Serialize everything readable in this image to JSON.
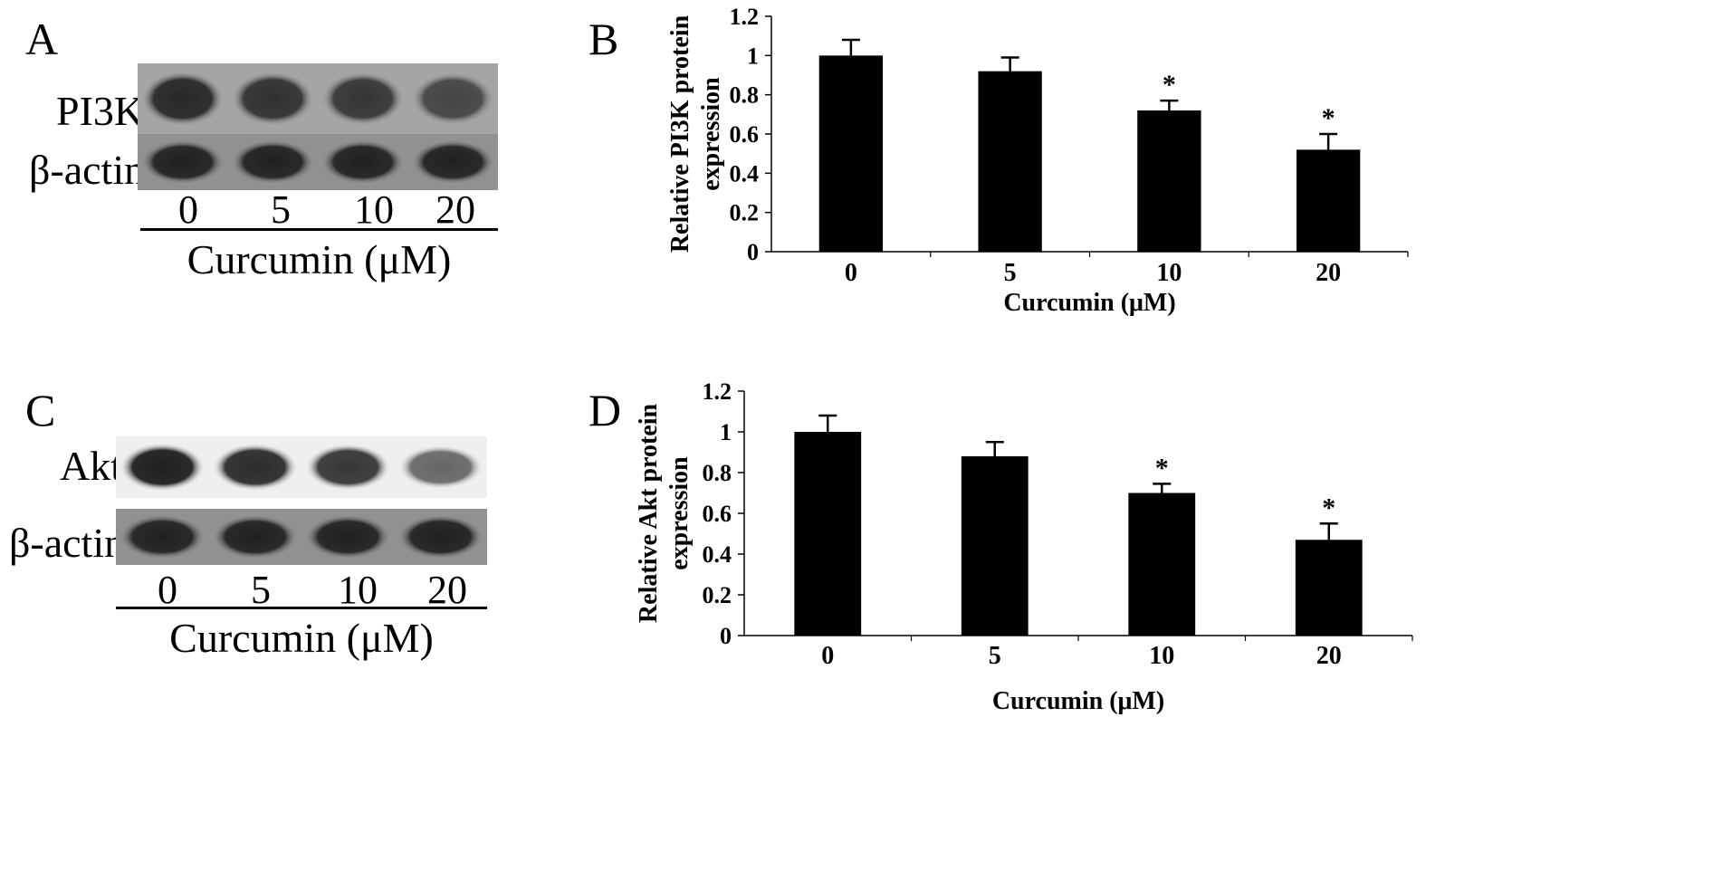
{
  "panels": {
    "a": {
      "letter": "A",
      "bands": [
        {
          "label": "PI3K",
          "intensities": [
            0.92,
            0.88,
            0.86,
            0.8
          ],
          "background": 0.45
        },
        {
          "label": "β-actin",
          "intensities": [
            0.95,
            0.95,
            0.95,
            0.95
          ],
          "background": 0.55
        }
      ],
      "lanes": [
        "0",
        "5",
        "10",
        "20"
      ],
      "xlabel": "Curcumin (μM)"
    },
    "b": {
      "letter": "B"
    },
    "c": {
      "letter": "C",
      "bands": [
        {
          "label": "Akt",
          "intensities": [
            0.95,
            0.9,
            0.85,
            0.65
          ],
          "background": 0.08
        },
        {
          "label": "β-actin",
          "intensities": [
            0.95,
            0.95,
            0.95,
            0.95
          ],
          "background": 0.55
        }
      ],
      "lanes": [
        "0",
        "5",
        "10",
        "20"
      ],
      "xlabel": "Curcumin (μM)"
    },
    "d": {
      "letter": "D"
    }
  },
  "chart_data": [
    {
      "type": "bar",
      "panel": "B",
      "categories": [
        "0",
        "5",
        "10",
        "20"
      ],
      "values": [
        1.0,
        0.92,
        0.72,
        0.52
      ],
      "errors": [
        0.08,
        0.07,
        0.05,
        0.08
      ],
      "significance": [
        "",
        "",
        "*",
        "*"
      ],
      "ylabel": "Relative PI3K protein expression",
      "xlabel": "Curcumin (μM)",
      "ylim": [
        0,
        1.2
      ],
      "yticks": [
        "0",
        "0.2",
        "0.4",
        "0.6",
        "0.8",
        "1",
        "1.2"
      ],
      "bar_color": "#000000"
    },
    {
      "type": "bar",
      "panel": "D",
      "categories": [
        "0",
        "5",
        "10",
        "20"
      ],
      "values": [
        1.0,
        0.88,
        0.7,
        0.47
      ],
      "errors": [
        0.08,
        0.07,
        0.045,
        0.08
      ],
      "significance": [
        "",
        "",
        "*",
        "*"
      ],
      "ylabel": "Relative Akt protein expression",
      "xlabel": "Curcumin (μM)",
      "ylim": [
        0,
        1.2
      ],
      "yticks": [
        "0",
        "0.2",
        "0.4",
        "0.6",
        "0.8",
        "1",
        "1.2"
      ],
      "bar_color": "#000000"
    }
  ]
}
